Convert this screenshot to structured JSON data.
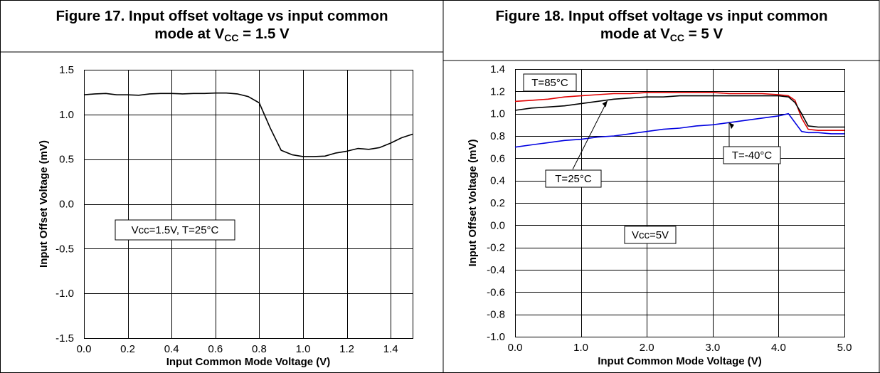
{
  "figures": [
    {
      "title_line1": "Figure 17. Input offset voltage vs input common",
      "title_prefix": "mode at V",
      "title_sub": "CC",
      "title_suffix": " = 1.5 V"
    },
    {
      "title_line1": "Figure 18. Input offset voltage vs input common",
      "title_prefix": "mode at V",
      "title_sub": "CC",
      "title_suffix": " = 5 V"
    }
  ],
  "chart_data": [
    {
      "type": "line",
      "title": "Figure 17. Input offset voltage vs input common mode at VCC = 1.5 V",
      "xlabel": "Input Common Mode Voltage (V)",
      "ylabel": "Input Offset Voltage (mV)",
      "xlim": [
        0.0,
        1.5
      ],
      "ylim": [
        -1.5,
        1.5
      ],
      "grid": true,
      "x_ticks": [
        "0.0",
        "0.2",
        "0.4",
        "0.6",
        "0.8",
        "1.0",
        "1.2",
        "1.4"
      ],
      "y_ticks": [
        "1.5",
        "1.0",
        "0.5",
        "0.0",
        "-0.5",
        "-1.0",
        "-1.5"
      ],
      "annotations": [
        {
          "text": "Vcc=1.5V, T=25°C",
          "x": 0.62,
          "y": -0.28
        }
      ],
      "series": [
        {
          "color": "#000000",
          "x": [
            0.0,
            0.05,
            0.1,
            0.15,
            0.2,
            0.25,
            0.3,
            0.35,
            0.4,
            0.45,
            0.5,
            0.55,
            0.6,
            0.65,
            0.7,
            0.75,
            0.8,
            0.85,
            0.9,
            0.95,
            1.0,
            1.05,
            1.1,
            1.15,
            1.2,
            1.25,
            1.3,
            1.35,
            1.4,
            1.45,
            1.5
          ],
          "y": [
            1.22,
            1.23,
            1.235,
            1.22,
            1.22,
            1.215,
            1.23,
            1.235,
            1.235,
            1.23,
            1.235,
            1.235,
            1.24,
            1.24,
            1.23,
            1.2,
            1.13,
            0.85,
            0.6,
            0.55,
            0.53,
            0.53,
            0.535,
            0.57,
            0.59,
            0.62,
            0.61,
            0.63,
            0.68,
            0.74,
            0.78
          ]
        }
      ]
    },
    {
      "type": "line",
      "title": "Figure 18. Input offset voltage vs input common mode at VCC = 5 V",
      "xlabel": "Input Common Mode Voltage (V)",
      "ylabel": "Input Offset Voltage (mV)",
      "xlim": [
        0.0,
        5.0
      ],
      "ylim": [
        -1.0,
        1.4
      ],
      "grid": true,
      "x_ticks": [
        "0.0",
        "1.0",
        "2.0",
        "3.0",
        "4.0",
        "5.0"
      ],
      "y_ticks": [
        "1.4",
        "1.2",
        "1.0",
        "0.8",
        "0.6",
        "0.4",
        "0.2",
        "0.0",
        "-0.2",
        "-0.4",
        "-0.6",
        "-0.8",
        "-1.0"
      ],
      "annotations": [
        {
          "text": "T=85°C",
          "x": 0.35,
          "y": 1.26
        },
        {
          "text": "T=25°C",
          "x": 1.1,
          "y": 0.44
        },
        {
          "text": "T=-40°C",
          "x": 3.85,
          "y": 0.62
        },
        {
          "text": "Vcc=5V",
          "x": 2.55,
          "y": -0.12
        }
      ],
      "series": [
        {
          "name": "T=85°C",
          "color": "#e00000",
          "x": [
            0.0,
            0.25,
            0.5,
            0.75,
            1.0,
            1.25,
            1.5,
            1.75,
            2.0,
            2.25,
            2.5,
            2.75,
            3.0,
            3.25,
            3.5,
            3.75,
            4.0,
            4.15,
            4.25,
            4.35,
            4.45,
            4.6,
            4.8,
            5.0
          ],
          "y": [
            1.11,
            1.12,
            1.13,
            1.15,
            1.16,
            1.17,
            1.18,
            1.18,
            1.19,
            1.19,
            1.19,
            1.19,
            1.19,
            1.18,
            1.18,
            1.18,
            1.17,
            1.16,
            1.12,
            0.96,
            0.86,
            0.85,
            0.85,
            0.85
          ]
        },
        {
          "name": "T=25°C",
          "color": "#000000",
          "x": [
            0.0,
            0.25,
            0.5,
            0.75,
            1.0,
            1.25,
            1.5,
            1.75,
            2.0,
            2.25,
            2.5,
            2.75,
            3.0,
            3.25,
            3.5,
            3.75,
            4.0,
            4.15,
            4.25,
            4.35,
            4.45,
            4.6,
            4.8,
            5.0
          ],
          "y": [
            1.03,
            1.05,
            1.06,
            1.07,
            1.09,
            1.11,
            1.13,
            1.14,
            1.15,
            1.15,
            1.16,
            1.16,
            1.16,
            1.16,
            1.16,
            1.16,
            1.16,
            1.15,
            1.1,
            1.0,
            0.89,
            0.88,
            0.88,
            0.88
          ]
        },
        {
          "name": "T=-40°C",
          "color": "#0000e0",
          "x": [
            0.0,
            0.25,
            0.5,
            0.75,
            1.0,
            1.25,
            1.5,
            1.75,
            2.0,
            2.25,
            2.5,
            2.75,
            3.0,
            3.25,
            3.5,
            3.75,
            4.0,
            4.15,
            4.25,
            4.35,
            4.45,
            4.6,
            4.8,
            5.0
          ],
          "y": [
            0.7,
            0.72,
            0.74,
            0.76,
            0.77,
            0.79,
            0.8,
            0.82,
            0.84,
            0.86,
            0.87,
            0.89,
            0.9,
            0.92,
            0.94,
            0.96,
            0.98,
            1.0,
            0.92,
            0.84,
            0.83,
            0.83,
            0.82,
            0.82
          ]
        }
      ]
    }
  ]
}
